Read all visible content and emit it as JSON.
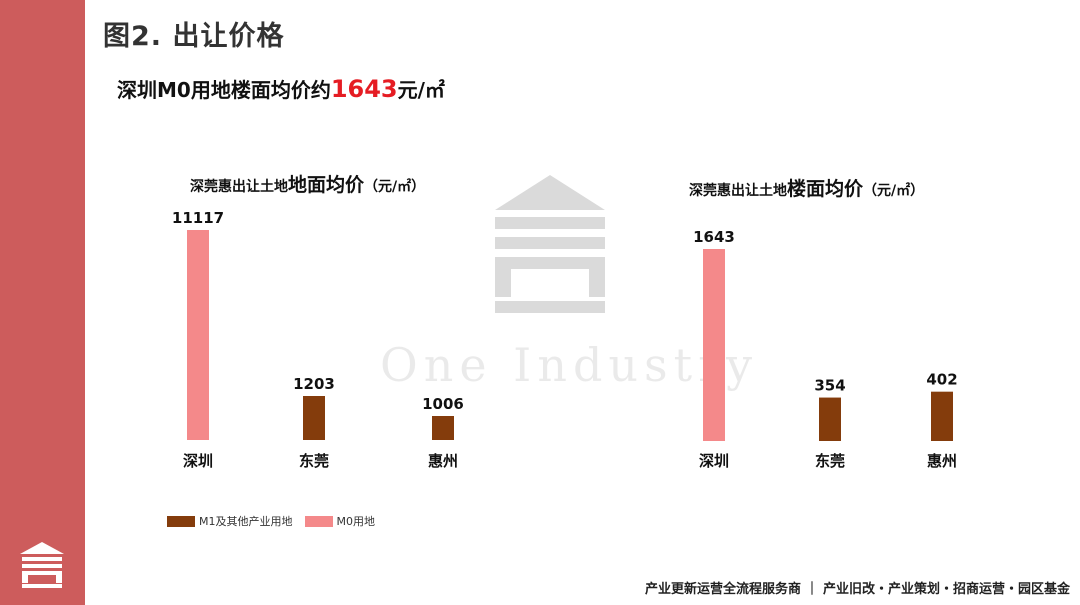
{
  "page": {
    "title": "图2. 出让价格",
    "subtitle_prefix": "深圳M0用地楼面均价约",
    "subtitle_value": "1643",
    "subtitle_suffix": "元/㎡",
    "watermark_text": "One Industry",
    "footer": "产业更新运营全流程服务商 ｜ 产业旧改・产业策划・招商运营・园区基金"
  },
  "legend": {
    "items": [
      {
        "label": "M1及其他产业用地",
        "color": "#843c0c"
      },
      {
        "label": "M0用地",
        "color": "#f4898a"
      }
    ]
  },
  "chart_data": [
    {
      "type": "bar",
      "title_prefix": "深莞惠出让土地",
      "title_emphasis": "地面均价",
      "title_unit": "（元/㎡）",
      "categories": [
        "深圳",
        "东莞",
        "惠州"
      ],
      "values": [
        11117,
        1203,
        1006
      ],
      "series_type": [
        "M0用地",
        "M1及其他产业用地",
        "M1及其他产业用地"
      ],
      "colors": [
        "#f4898a",
        "#843c0c",
        "#843c0c"
      ]
    },
    {
      "type": "bar",
      "title_prefix": "深莞惠出让土地",
      "title_emphasis": "楼面均价",
      "title_unit": "（元/㎡）",
      "categories": [
        "深圳",
        "东莞",
        "惠州"
      ],
      "values": [
        1643,
        354,
        402
      ],
      "series_type": [
        "M0用地",
        "M1及其他产业用地",
        "M1及其他产业用地"
      ],
      "colors": [
        "#f4898a",
        "#843c0c",
        "#843c0c"
      ]
    }
  ]
}
